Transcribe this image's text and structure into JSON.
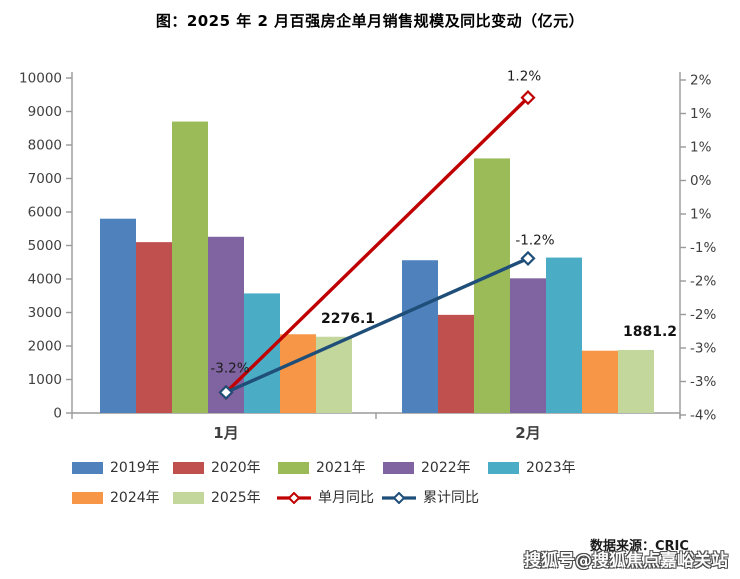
{
  "title": "图：2025 年 2 月百强房企单月销售规模及同比变动（亿元）",
  "source_text": "数据来源：CRIC",
  "watermark": "搜狐号@搜狐焦点嘉峪关站",
  "chart_data": {
    "type": "bar",
    "subtype": "grouped-bar-with-line-overlay",
    "categories": [
      "1月",
      "2月"
    ],
    "bar_series": [
      {
        "name": "2019年",
        "color": "#4F81BD",
        "values": [
          5800,
          4560
        ]
      },
      {
        "name": "2020年",
        "color": "#C0504D",
        "values": [
          5100,
          2930
        ]
      },
      {
        "name": "2021年",
        "color": "#9BBB59",
        "values": [
          8700,
          7600
        ]
      },
      {
        "name": "2022年",
        "color": "#8064A2",
        "values": [
          5260,
          4020
        ]
      },
      {
        "name": "2023年",
        "color": "#4BACC6",
        "values": [
          3570,
          4640
        ]
      },
      {
        "name": "2024年",
        "color": "#F79646",
        "values": [
          2350,
          1860
        ]
      },
      {
        "name": "2025年",
        "color": "#C3D69B",
        "values": [
          2276.1,
          1881.2
        ],
        "value_labels": [
          "2276.1",
          "1881.2"
        ]
      }
    ],
    "line_series": [
      {
        "name": "单月同比",
        "color": "#C00000",
        "values_pct": [
          -3.2,
          1.2
        ],
        "point_labels": [
          "-3.2%",
          "1.2%"
        ]
      },
      {
        "name": "累计同比",
        "color": "#1F4E79",
        "values_pct": [
          -3.2,
          -1.2
        ],
        "point_labels": [
          "",
          "-1.2%"
        ]
      }
    ],
    "left_axis": {
      "min": 0,
      "max": 10000,
      "step": 1000,
      "tick_labels": [
        "0",
        "1000",
        "2000",
        "3000",
        "4000",
        "5000",
        "6000",
        "7000",
        "8000",
        "9000",
        "10000"
      ]
    },
    "right_axis": {
      "tick_labels_top_to_bottom": [
        "2%",
        "1%",
        "1%",
        "0%",
        "1%",
        "-1%",
        "-2%",
        "-2%",
        "-3%",
        "-3%",
        "-4%"
      ]
    },
    "grid": "off",
    "legend_position": "bottom"
  }
}
